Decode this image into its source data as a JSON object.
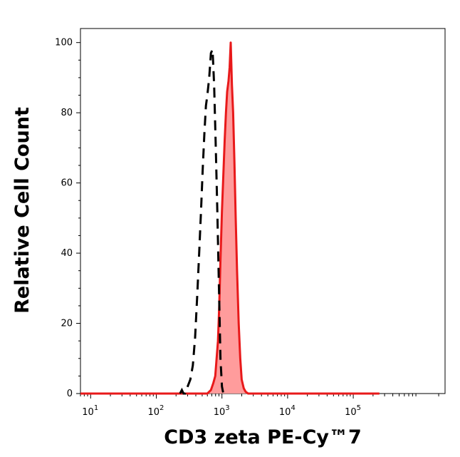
{
  "chart_data": {
    "type": "area",
    "title": "",
    "xlabel": "CD3 zeta PE-Cy™⁠7",
    "ylabel": "Relative Cell Count",
    "x_scale": "log",
    "xlim": [
      7,
      2500000
    ],
    "ylim": [
      0,
      104
    ],
    "x_ticks": [
      {
        "value": 10,
        "base": "10",
        "exp": "1"
      },
      {
        "value": 100,
        "base": "10",
        "exp": "2"
      },
      {
        "value": 1000,
        "base": "10",
        "exp": "3"
      },
      {
        "value": 10000,
        "base": "10",
        "exp": "4"
      },
      {
        "value": 100000,
        "base": "10",
        "exp": "5"
      }
    ],
    "y_ticks": [
      "0",
      "20",
      "40",
      "60",
      "80",
      "100"
    ],
    "y_tick_values": [
      0,
      20,
      40,
      60,
      80,
      100
    ],
    "grid": false,
    "series": [
      {
        "style": "filled",
        "color": "#e8191a",
        "fill": "#ff9c9c",
        "x": [
          7,
          600,
          680,
          740,
          790,
          830,
          870,
          910,
          950,
          1000,
          1050,
          1100,
          1150,
          1200,
          1260,
          1310,
          1360,
          1420,
          1480,
          1550,
          1620,
          1700,
          1800,
          1900,
          2000,
          2150,
          2300,
          2500,
          3000,
          10000,
          100000,
          250000
        ],
        "y": [
          0,
          0,
          1,
          3,
          5,
          10,
          15,
          25,
          38,
          52,
          62,
          72,
          80,
          86,
          89,
          93,
          100,
          88,
          80,
          66,
          50,
          35,
          20,
          10,
          4,
          1.5,
          0.5,
          0,
          0,
          0,
          0,
          0
        ]
      },
      {
        "style": "dashed",
        "color": "#000000",
        "x": [
          230,
          245,
          260,
          275,
          300,
          330,
          360,
          390,
          420,
          450,
          480,
          510,
          540,
          570,
          600,
          640,
          680,
          720,
          760,
          800,
          850,
          900,
          950,
          1000,
          1050
        ],
        "y": [
          0,
          1,
          0,
          0,
          2,
          4,
          8,
          16,
          28,
          40,
          52,
          64,
          74,
          82,
          85,
          90,
          97,
          98,
          88,
          72,
          52,
          30,
          10,
          2,
          0
        ]
      }
    ]
  }
}
